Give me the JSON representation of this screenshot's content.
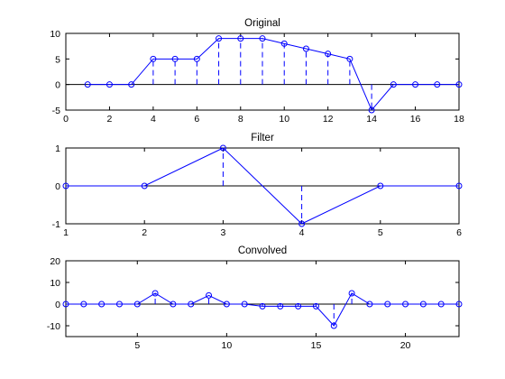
{
  "chart_data": [
    {
      "type": "stem",
      "title": "Original",
      "xlim": [
        0,
        18
      ],
      "ylim": [
        -5,
        10
      ],
      "xticks": [
        0,
        2,
        4,
        6,
        8,
        10,
        12,
        14,
        16,
        18
      ],
      "yticks": [
        -5,
        0,
        5,
        10
      ],
      "grid": false,
      "color": "#0000ff",
      "x": [
        1,
        2,
        3,
        4,
        5,
        6,
        7,
        8,
        9,
        10,
        11,
        12,
        13,
        14,
        15,
        16,
        17,
        18
      ],
      "y": [
        0,
        0,
        0,
        5,
        5,
        5,
        9,
        9,
        9,
        8,
        7,
        6,
        5,
        -5,
        0,
        0,
        0,
        0
      ]
    },
    {
      "type": "stem",
      "title": "Filter",
      "xlim": [
        1,
        6
      ],
      "ylim": [
        -1,
        1
      ],
      "xticks": [
        1,
        2,
        3,
        4,
        5,
        6
      ],
      "yticks": [
        -1,
        0,
        1
      ],
      "grid": false,
      "color": "#0000ff",
      "x": [
        1,
        2,
        3,
        4,
        5,
        6
      ],
      "y": [
        0,
        0,
        1,
        -1,
        0,
        0
      ]
    },
    {
      "type": "stem",
      "title": "Convolved",
      "xlim": [
        1,
        23
      ],
      "ylim": [
        -15,
        20
      ],
      "xticks": [
        5,
        10,
        15,
        20
      ],
      "yticks": [
        -10,
        0,
        10,
        20
      ],
      "grid": false,
      "color": "#0000ff",
      "x": [
        1,
        2,
        3,
        4,
        5,
        6,
        7,
        8,
        9,
        10,
        11,
        12,
        13,
        14,
        15,
        16,
        17,
        18,
        19,
        20,
        21,
        22,
        23
      ],
      "y": [
        0,
        0,
        0,
        0,
        0,
        5,
        0,
        0,
        4,
        0,
        0,
        -1,
        -1,
        -1,
        -1,
        -10,
        5,
        0,
        0,
        0,
        0,
        0,
        0
      ]
    }
  ]
}
